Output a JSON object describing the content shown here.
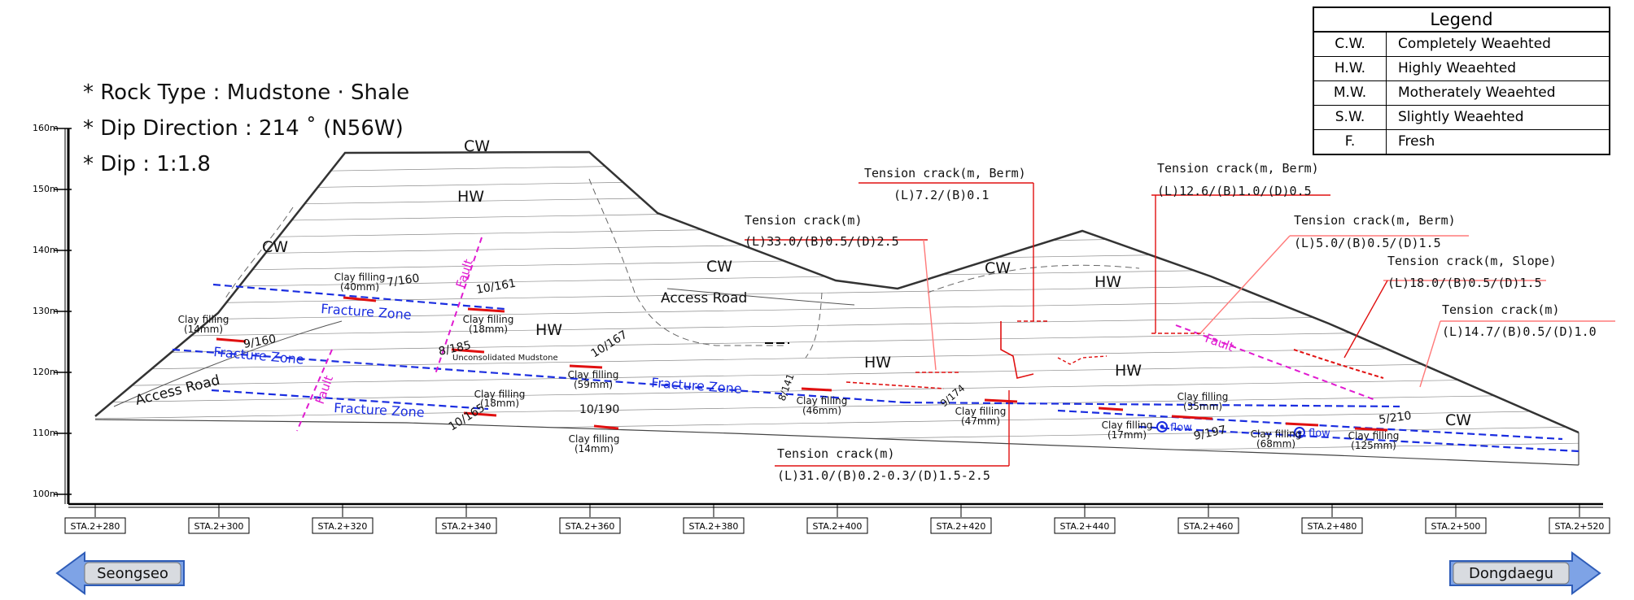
{
  "notes": [
    "* Rock Type : Mudstone · Shale",
    "* Dip Direction : 214 ˚ (N56W)",
    "* Dip : 1:1.8"
  ],
  "legend": {
    "title": "Legend",
    "rows": [
      {
        "code": "C.W.",
        "desc": "Completely Weaehted"
      },
      {
        "code": "H.W.",
        "desc": "Highly Weaehted"
      },
      {
        "code": "M.W.",
        "desc": "Motherately Weaehted"
      },
      {
        "code": "S.W.",
        "desc": "Slightly Weaehted"
      },
      {
        "code": "F.",
        "desc": "Fresh"
      }
    ]
  },
  "elevations": [
    "160m",
    "150m",
    "140m",
    "130m",
    "120m",
    "110m",
    "100m"
  ],
  "stations": [
    "STA.2+280",
    "STA.2+300",
    "STA.2+320",
    "STA.2+340",
    "STA.2+360",
    "STA.2+380",
    "STA.2+400",
    "STA.2+420",
    "STA.2+440",
    "STA.2+460",
    "STA.2+480",
    "STA.2+500",
    "STA.2+520"
  ],
  "zones": {
    "cw": "CW",
    "hw": "HW",
    "access_road": "Access Road",
    "fracture_zone": "Fracture Zone",
    "fault": "Fault"
  },
  "tension_cracks": {
    "c1_title": "Tension crack(m, Berm)",
    "c1_value": "(L)7.2/(B)0.1",
    "c2_title": "Tension crack(m)",
    "c2_value": "(L)33.0/(B)0.5/(D)2.5",
    "c3_title": "Tension crack(m, Berm)",
    "c3_value": "(L)12.6/(B)1.0/(D)0.5",
    "c4_title": "Tension crack(m, Berm)",
    "c4_value": "(L)5.0/(B)0.5/(D)1.5",
    "c5_title": "Tension crack(m, Slope)",
    "c5_value": "(L)18.0/(B)0.5/(D)1.5",
    "c6_title": "Tension crack(m)",
    "c6_value": "(L)14.7/(B)0.5/(D)1.0",
    "c7_title": "Tension crack(m)",
    "c7_value": "(L)31.0/(B)0.2-0.3/(D)1.5-2.5"
  },
  "clay": {
    "cf": "Clay filling",
    "t40": "(40mm)",
    "t14": "(14mm)",
    "t18": "(18mm)",
    "t59": "(59mm)",
    "t46": "(46mm)",
    "t47": "(47mm)",
    "t17": "(17mm)",
    "t35": "(35mm)",
    "t68": "(68mm)",
    "t125": "(125mm)"
  },
  "dips": {
    "d7_160": "7/160",
    "d10_161": "10/161",
    "d9_160": "9/160",
    "d8_185": "8/185",
    "d10_167": "10/167",
    "d10_165": "10/165",
    "d10_190": "10/190",
    "d8_141": "8/141",
    "d9_174": "9/174",
    "d9_197": "9/197",
    "d5_210": "5/210"
  },
  "unconsolidated": "Unconsolidated Mudstone",
  "flow": "flow",
  "nav": {
    "left": "Seongseo",
    "right": "Dongdaegu"
  }
}
